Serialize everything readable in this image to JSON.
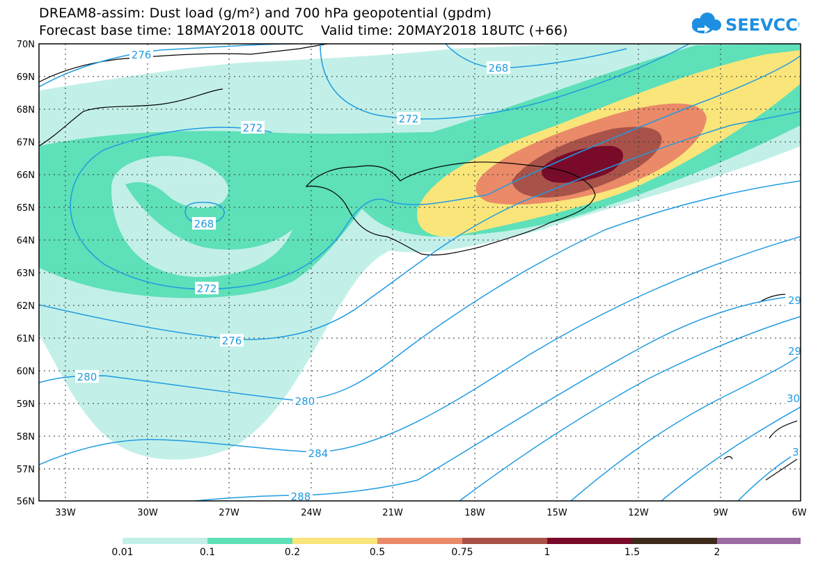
{
  "header": {
    "title_line1": "DREAM8-assim: Dust load (g/m²) and 700 hPa geopotential (gpdm)",
    "title_line2": "Forecast base time: 18MAY2018 00UTC    Valid time: 20MAY2018 18UTC (+66)",
    "logo_text": "SEEVCCC",
    "logo_icon": "cloud-icon"
  },
  "map": {
    "lat_labels": [
      "70N",
      "69N",
      "68N",
      "67N",
      "66N",
      "65N",
      "64N",
      "63N",
      "62N",
      "61N",
      "60N",
      "59N",
      "58N",
      "57N",
      "56N"
    ],
    "lon_labels": [
      "33W",
      "30W",
      "27W",
      "24W",
      "21W",
      "18W",
      "15W",
      "12W",
      "9W",
      "6W"
    ],
    "contour_labels": [
      "276",
      "268",
      "272",
      "272",
      "268",
      "272",
      "276",
      "280",
      "280",
      "284",
      "288",
      "29",
      "29",
      "30",
      "3"
    ],
    "line_color": "#1f9be0"
  },
  "legend": {
    "colors": [
      "#c2f0e8",
      "#5ee0b8",
      "#f9e57a",
      "#ea8a68",
      "#a9524a",
      "#7a0a2a",
      "#3d2a1a",
      "#9a6aa0"
    ],
    "labels": [
      "0.01",
      "0.1",
      "0.2",
      "0.5",
      "0.75",
      "1",
      "1.5",
      "2"
    ]
  }
}
